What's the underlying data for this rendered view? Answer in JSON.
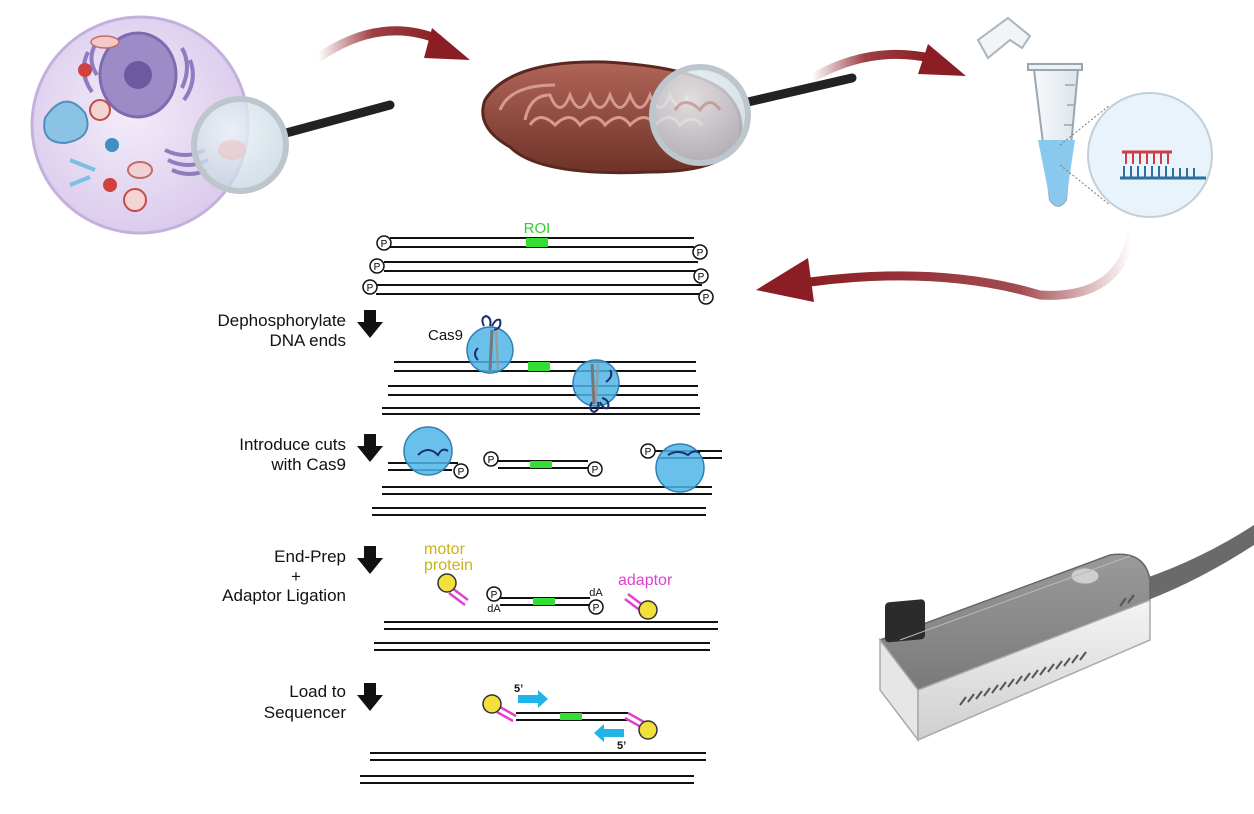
{
  "colors": {
    "dna_strand": "#111111",
    "roi": "#33dd33",
    "cas9": "#4fb6e8",
    "motor_protein": "#f3e03a",
    "motor_protein_label": "#c9b21a",
    "adaptor": "#e040d0",
    "primer_arrow": "#20b4e8",
    "flow_arrow": "#8b1e24",
    "roi_label": "#33cc33"
  },
  "labels": {
    "roi": "ROI",
    "cas9": "Cas9",
    "phosphate": "P",
    "da": "dA",
    "motor_protein_line1": "motor",
    "motor_protein_line2": "protein",
    "adaptor": "adaptor",
    "five_prime": "5’"
  },
  "steps": [
    {
      "line1": "Dephosphorylate",
      "line2": "DNA ends"
    },
    {
      "line1": "Introduce cuts",
      "line2": "with Cas9"
    },
    {
      "line1": "End-Prep",
      "line2": "+",
      "line3": "Adaptor Ligation"
    },
    {
      "line1": "Load to",
      "line2": "Sequencer"
    }
  ],
  "icons": [
    "cell-icon",
    "magnifier-icon",
    "mitochondrion-icon",
    "tube-icon",
    "dna-zoom-icon",
    "sequencer-device-icon"
  ]
}
